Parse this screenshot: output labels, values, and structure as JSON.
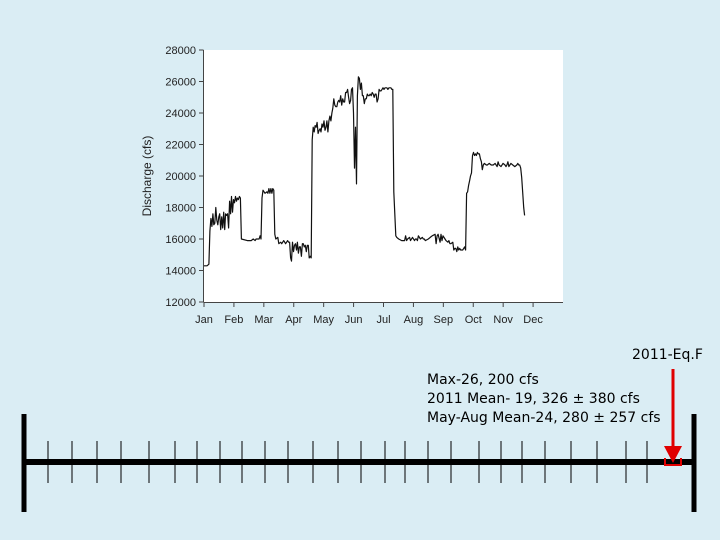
{
  "chart_data": {
    "type": "line",
    "title": "",
    "ylabel": "Discharge (cfs)",
    "xlabel": "",
    "ylim": [
      12000,
      28000
    ],
    "y_ticks": [
      12000,
      14000,
      16000,
      18000,
      20000,
      22000,
      24000,
      26000,
      28000
    ],
    "x_tick_labels": [
      "Jan",
      "Feb",
      "Mar",
      "Apr",
      "May",
      "Jun",
      "Jul",
      "Aug",
      "Sep",
      "Oct",
      "Nov",
      "Dec"
    ],
    "x_domain": [
      0,
      365
    ],
    "grid": false,
    "series": [
      {
        "points": [
          [
            0,
            14300
          ],
          [
            3,
            14300
          ],
          [
            5,
            14400
          ],
          [
            6,
            16500
          ],
          [
            7,
            17300
          ],
          [
            8,
            16800
          ],
          [
            9,
            17600
          ],
          [
            10,
            16900
          ],
          [
            11,
            17000
          ],
          [
            12,
            18000
          ],
          [
            13,
            17200
          ],
          [
            14,
            16900
          ],
          [
            15,
            17400
          ],
          [
            16,
            17600
          ],
          [
            17,
            16600
          ],
          [
            18,
            17400
          ],
          [
            19,
            16700
          ],
          [
            20,
            17700
          ],
          [
            21,
            16600
          ],
          [
            22,
            17600
          ],
          [
            23,
            17500
          ],
          [
            24,
            17600
          ],
          [
            25,
            16700
          ],
          [
            26,
            18400
          ],
          [
            27,
            17600
          ],
          [
            28,
            18700
          ],
          [
            29,
            17700
          ],
          [
            30,
            18500
          ],
          [
            31,
            18300
          ],
          [
            32,
            18700
          ],
          [
            33,
            18400
          ],
          [
            34,
            18600
          ],
          [
            35,
            18500
          ],
          [
            36,
            18700
          ],
          [
            37,
            18600
          ],
          [
            38,
            16000
          ],
          [
            44,
            15900
          ],
          [
            48,
            15900
          ],
          [
            50,
            16000
          ],
          [
            52,
            15900
          ],
          [
            53,
            16000
          ],
          [
            56,
            16000
          ],
          [
            57,
            16200
          ],
          [
            58,
            16000
          ],
          [
            59,
            18600
          ],
          [
            60,
            19100
          ],
          [
            62,
            18900
          ],
          [
            64,
            19000
          ],
          [
            65,
            18900
          ],
          [
            66,
            19200
          ],
          [
            67,
            18900
          ],
          [
            68,
            19200
          ],
          [
            69,
            18900
          ],
          [
            70,
            19200
          ],
          [
            71,
            19100
          ],
          [
            72,
            16300
          ],
          [
            73,
            16000
          ],
          [
            75,
            16100
          ],
          [
            76,
            15700
          ],
          [
            78,
            15800
          ],
          [
            79,
            15700
          ],
          [
            80,
            15800
          ],
          [
            81,
            15900
          ],
          [
            82,
            15800
          ],
          [
            83,
            15700
          ],
          [
            84,
            15800
          ],
          [
            85,
            15900
          ],
          [
            86,
            15800
          ],
          [
            87,
            15800
          ],
          [
            88,
            14800
          ],
          [
            89,
            14600
          ],
          [
            90,
            15800
          ],
          [
            91,
            15200
          ],
          [
            92,
            15600
          ],
          [
            93,
            15700
          ],
          [
            94,
            15300
          ],
          [
            95,
            15800
          ],
          [
            96,
            15100
          ],
          [
            97,
            15500
          ],
          [
            98,
            15500
          ],
          [
            99,
            14900
          ],
          [
            100,
            15700
          ],
          [
            101,
            15700
          ],
          [
            102,
            15500
          ],
          [
            103,
            15600
          ],
          [
            104,
            15200
          ],
          [
            105,
            15600
          ],
          [
            106,
            15600
          ],
          [
            107,
            14800
          ],
          [
            108,
            14900
          ],
          [
            109,
            14800
          ],
          [
            110,
            22300
          ],
          [
            111,
            23100
          ],
          [
            112,
            22800
          ],
          [
            113,
            23200
          ],
          [
            114,
            23100
          ],
          [
            115,
            23400
          ],
          [
            116,
            22700
          ],
          [
            117,
            22900
          ],
          [
            118,
            23000
          ],
          [
            119,
            22800
          ],
          [
            120,
            23300
          ],
          [
            121,
            23100
          ],
          [
            122,
            23500
          ],
          [
            123,
            22900
          ],
          [
            124,
            23100
          ],
          [
            125,
            23500
          ],
          [
            126,
            22800
          ],
          [
            127,
            23500
          ],
          [
            128,
            23800
          ],
          [
            129,
            23500
          ],
          [
            130,
            24000
          ],
          [
            131,
            24300
          ],
          [
            132,
            24900
          ],
          [
            133,
            24500
          ],
          [
            134,
            24400
          ],
          [
            135,
            24400
          ],
          [
            136,
            24700
          ],
          [
            137,
            24800
          ],
          [
            138,
            24700
          ],
          [
            139,
            25100
          ],
          [
            140,
            24500
          ],
          [
            141,
            24900
          ],
          [
            142,
            24700
          ],
          [
            143,
            24700
          ],
          [
            144,
            25300
          ],
          [
            145,
            25300
          ],
          [
            146,
            25500
          ],
          [
            147,
            25000
          ],
          [
            148,
            24600
          ],
          [
            149,
            24800
          ],
          [
            150,
            25500
          ],
          [
            151,
            25600
          ],
          [
            152,
            24000
          ],
          [
            153,
            20500
          ],
          [
            154,
            23100
          ],
          [
            155,
            19500
          ],
          [
            156,
            25100
          ],
          [
            157,
            26300
          ],
          [
            158,
            26200
          ],
          [
            159,
            25500
          ],
          [
            160,
            25900
          ],
          [
            161,
            25100
          ],
          [
            162,
            25100
          ],
          [
            163,
            24600
          ],
          [
            164,
            24900
          ],
          [
            165,
            24900
          ],
          [
            166,
            25200
          ],
          [
            167,
            25100
          ],
          [
            168,
            25100
          ],
          [
            169,
            25200
          ],
          [
            170,
            25100
          ],
          [
            171,
            25300
          ],
          [
            172,
            25200
          ],
          [
            173,
            25000
          ],
          [
            174,
            25200
          ],
          [
            175,
            25200
          ],
          [
            176,
            24700
          ],
          [
            177,
            24900
          ],
          [
            178,
            25500
          ],
          [
            179,
            25400
          ],
          [
            180,
            25400
          ],
          [
            181,
            25500
          ],
          [
            182,
            25600
          ],
          [
            183,
            25500
          ],
          [
            184,
            25600
          ],
          [
            185,
            25600
          ],
          [
            186,
            25600
          ],
          [
            187,
            25500
          ],
          [
            188,
            25600
          ],
          [
            189,
            25600
          ],
          [
            190,
            25600
          ],
          [
            191,
            25500
          ],
          [
            192,
            25500
          ],
          [
            193,
            19000
          ],
          [
            195,
            16200
          ],
          [
            196,
            16100
          ],
          [
            198,
            16000
          ],
          [
            201,
            15900
          ],
          [
            203,
            15900
          ],
          [
            204,
            15900
          ],
          [
            205,
            16200
          ],
          [
            206,
            15900
          ],
          [
            207,
            16000
          ],
          [
            209,
            16100
          ],
          [
            210,
            15900
          ],
          [
            212,
            16100
          ],
          [
            214,
            15900
          ],
          [
            215,
            16000
          ],
          [
            216,
            16000
          ],
          [
            217,
            15900
          ],
          [
            218,
            16200
          ],
          [
            220,
            16000
          ],
          [
            222,
            16100
          ],
          [
            223,
            16000
          ],
          [
            224,
            16000
          ],
          [
            225,
            15900
          ],
          [
            228,
            16000
          ],
          [
            230,
            16100
          ],
          [
            232,
            16200
          ],
          [
            235,
            16300
          ],
          [
            236,
            15700
          ],
          [
            237,
            16200
          ],
          [
            238,
            16300
          ],
          [
            240,
            15800
          ],
          [
            241,
            16300
          ],
          [
            242,
            15900
          ],
          [
            243,
            16200
          ],
          [
            245,
            16000
          ],
          [
            246,
            15900
          ],
          [
            248,
            15800
          ],
          [
            249,
            15900
          ],
          [
            250,
            15700
          ],
          [
            251,
            15700
          ],
          [
            253,
            15800
          ],
          [
            254,
            15300
          ],
          [
            255,
            15400
          ],
          [
            256,
            15400
          ],
          [
            257,
            15200
          ],
          [
            258,
            15500
          ],
          [
            259,
            15300
          ],
          [
            260,
            15400
          ],
          [
            261,
            15300
          ],
          [
            262,
            15300
          ],
          [
            263,
            15300
          ],
          [
            264,
            15400
          ],
          [
            265,
            15500
          ],
          [
            266,
            15300
          ],
          [
            267,
            18900
          ],
          [
            268,
            19000
          ],
          [
            269,
            19400
          ],
          [
            270,
            19700
          ],
          [
            271,
            20000
          ],
          [
            272,
            20200
          ],
          [
            273,
            21300
          ],
          [
            274,
            21500
          ],
          [
            275,
            21300
          ],
          [
            276,
            21400
          ],
          [
            277,
            21300
          ],
          [
            278,
            21500
          ],
          [
            279,
            21400
          ],
          [
            280,
            21400
          ],
          [
            281,
            21100
          ],
          [
            282,
            20900
          ],
          [
            283,
            20400
          ],
          [
            284,
            20700
          ],
          [
            285,
            20800
          ],
          [
            287,
            20700
          ],
          [
            288,
            20700
          ],
          [
            290,
            20800
          ],
          [
            292,
            20700
          ],
          [
            294,
            20700
          ],
          [
            296,
            20800
          ],
          [
            298,
            20600
          ],
          [
            299,
            20900
          ],
          [
            300,
            20700
          ],
          [
            302,
            20600
          ],
          [
            304,
            20800
          ],
          [
            306,
            20700
          ],
          [
            307,
            20600
          ],
          [
            308,
            20700
          ],
          [
            309,
            20900
          ],
          [
            310,
            20600
          ],
          [
            312,
            20800
          ],
          [
            314,
            20700
          ],
          [
            316,
            20600
          ],
          [
            318,
            20700
          ],
          [
            319,
            20800
          ],
          [
            320,
            20700
          ],
          [
            321,
            20700
          ],
          [
            322,
            20500
          ],
          [
            323,
            19900
          ],
          [
            325,
            18000
          ],
          [
            326,
            17500
          ]
        ]
      }
    ]
  },
  "annotation": {
    "label": "2011-Eq.F",
    "lines": [
      "Max-26, 200 cfs",
      "2011 Mean- 19, 326 ± 380 cfs",
      "May-Aug Mean-24, 280 ± 257 cfs"
    ],
    "marker_color": "#e00000"
  }
}
